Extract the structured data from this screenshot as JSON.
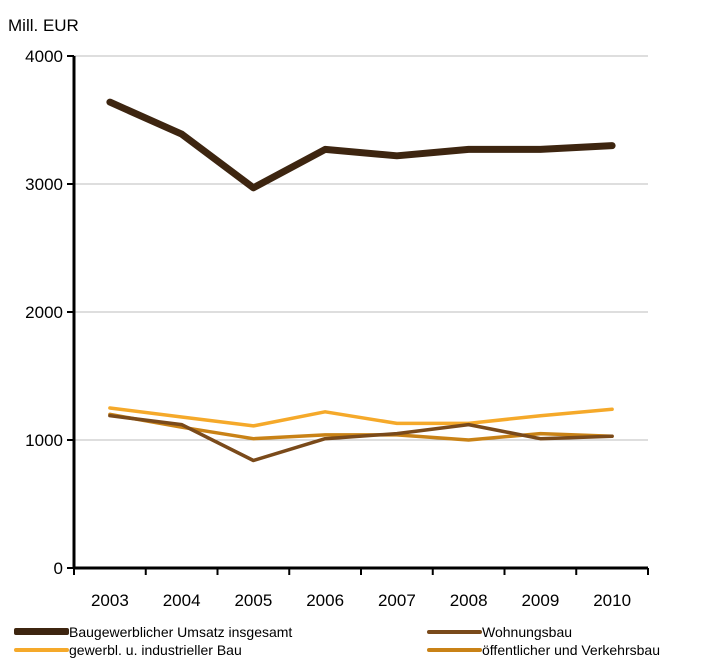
{
  "chart_data": {
    "type": "line",
    "unit_label": "Mill.  EUR",
    "categories": [
      "2003",
      "2004",
      "2005",
      "2006",
      "2007",
      "2008",
      "2009",
      "2010"
    ],
    "ylim": [
      0,
      4000
    ],
    "yticks": [
      0,
      1000,
      2000,
      3000,
      4000
    ],
    "grid": true,
    "legend_position": "bottom",
    "series": [
      {
        "name": "Baugewerblicher Umsatz insgesamt",
        "color": "#3d2510",
        "values": [
          3640,
          3390,
          2970,
          3270,
          3220,
          3270,
          3270,
          3300
        ]
      },
      {
        "name": "Wohnungsbau",
        "color": "#7a4a1a",
        "values": [
          1190,
          1120,
          840,
          1010,
          1050,
          1120,
          1010,
          1030
        ]
      },
      {
        "name": "gewerbl. u. industrieller  Bau",
        "color": "#f5a92a",
        "values": [
          1250,
          1180,
          1110,
          1220,
          1130,
          1130,
          1190,
          1240
        ]
      },
      {
        "name": "öffentlicher und Verkehrsbau",
        "color": "#c98216",
        "values": [
          1200,
          1100,
          1010,
          1040,
          1040,
          1000,
          1050,
          1030
        ]
      }
    ]
  }
}
